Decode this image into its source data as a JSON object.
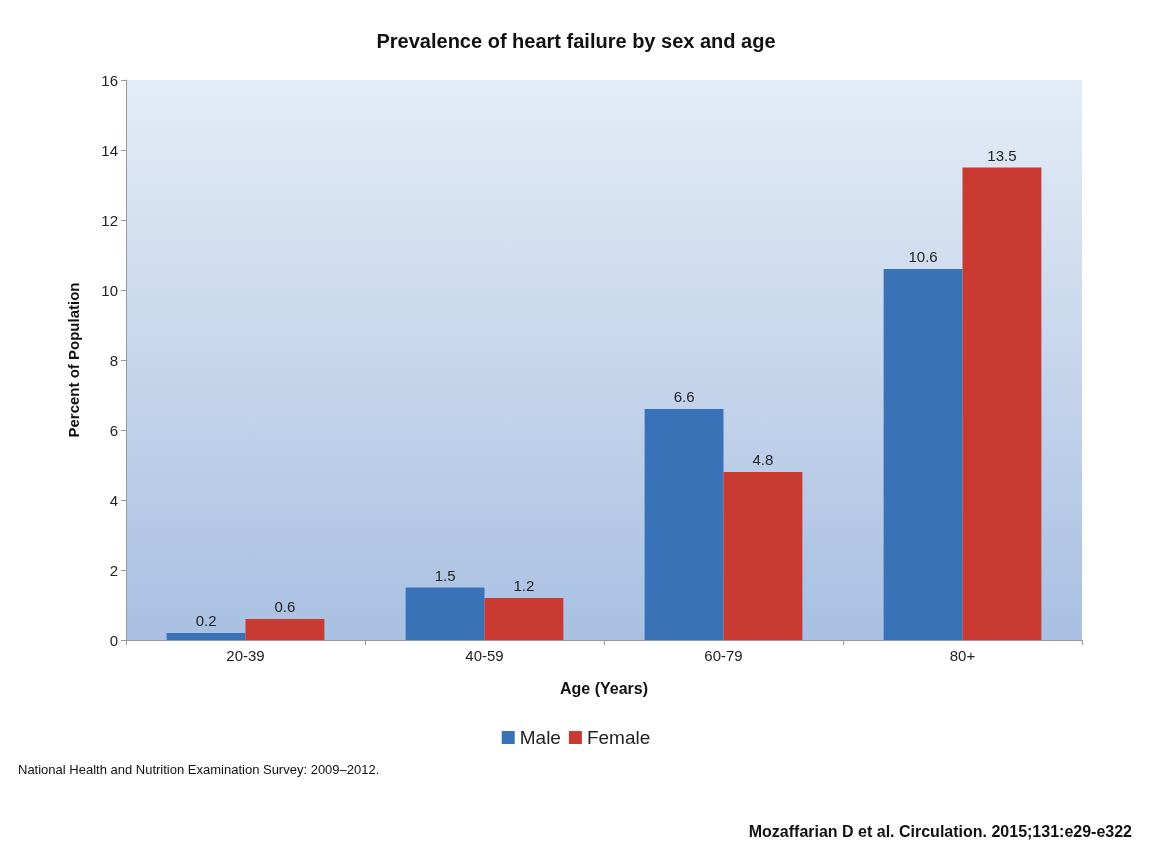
{
  "chart_data": {
    "type": "bar",
    "title": "Prevalence of heart failure by sex and age",
    "xlabel": "Age (Years)",
    "ylabel": "Percent of Population",
    "categories": [
      "20-39",
      "40-59",
      "60-79",
      "80+"
    ],
    "series": [
      {
        "name": "Male",
        "color": "#3a72b8",
        "values": [
          0.2,
          1.5,
          6.6,
          10.6
        ]
      },
      {
        "name": "Female",
        "color": "#c83a32",
        "values": [
          0.6,
          1.2,
          4.8,
          13.5
        ]
      }
    ],
    "ylim": [
      0,
      16
    ],
    "yticks": [
      0,
      2,
      4,
      6,
      8,
      10,
      12,
      14,
      16
    ],
    "grid": false,
    "legend": "bottom",
    "data_labels": true,
    "annotations": [
      "National Health and Nutrition Examination Survey: 2009–2012.",
      "Mozaffarian D et al. Circulation. 2015;131:e29-e322"
    ]
  }
}
